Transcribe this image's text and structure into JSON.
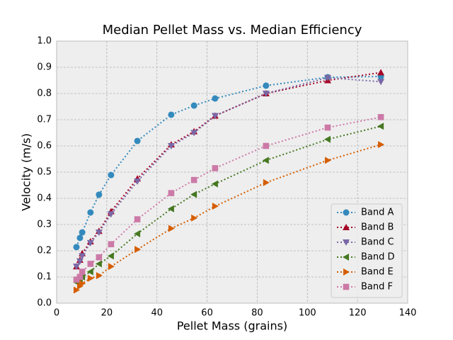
{
  "chart_data": {
    "type": "line",
    "title": "Median Pellet Mass vs. Median Efficiency",
    "x_label": "Pellet Mass (grains)",
    "y_label": "Velocity (m/s)",
    "x": [
      7.9,
      9.3,
      10.2,
      13.5,
      16.9,
      21.7,
      32.2,
      45.7,
      54.8,
      63.2,
      83.5,
      108.1,
      129.3
    ],
    "series": [
      {
        "name": "Band A",
        "color": "#348abd",
        "marker": "circle",
        "values": [
          0.214,
          0.249,
          0.27,
          0.346,
          0.414,
          0.489,
          0.619,
          0.719,
          0.754,
          0.781,
          0.83,
          0.862,
          0.865
        ]
      },
      {
        "name": "Band B",
        "color": "#a60628",
        "marker": "triangle-up",
        "values": [
          0.14,
          0.165,
          0.19,
          0.235,
          0.275,
          0.35,
          0.475,
          0.605,
          0.655,
          0.715,
          0.8,
          0.85,
          0.88
        ]
      },
      {
        "name": "Band C",
        "color": "#7a68a6",
        "marker": "triangle-down",
        "values": [
          0.14,
          0.16,
          0.18,
          0.23,
          0.27,
          0.34,
          0.465,
          0.6,
          0.65,
          0.715,
          0.8,
          0.86,
          0.845
        ]
      },
      {
        "name": "Band D",
        "color": "#467821",
        "marker": "triangle-left",
        "values": [
          0.08,
          0.09,
          0.1,
          0.12,
          0.15,
          0.18,
          0.265,
          0.36,
          0.415,
          0.455,
          0.545,
          0.625,
          0.675
        ]
      },
      {
        "name": "Band E",
        "color": "#d55e00",
        "marker": "triangle-right",
        "values": [
          0.05,
          0.065,
          0.075,
          0.095,
          0.105,
          0.14,
          0.205,
          0.285,
          0.325,
          0.37,
          0.46,
          0.545,
          0.605
        ]
      },
      {
        "name": "Band F",
        "color": "#cc79a7",
        "marker": "square",
        "values": [
          0.09,
          0.1,
          0.12,
          0.15,
          0.175,
          0.225,
          0.32,
          0.42,
          0.47,
          0.515,
          0.6,
          0.67,
          0.71
        ]
      }
    ],
    "xlim": [
      0,
      140
    ],
    "xticks": [
      0,
      20,
      40,
      60,
      80,
      100,
      120,
      140
    ],
    "ylim": [
      0,
      1
    ],
    "yticks": [
      {
        "value": 0,
        "label": "0.0"
      },
      0.1,
      0.2,
      0.3,
      0.4,
      0.5,
      0.6,
      0.7,
      0.8,
      0.9,
      {
        "value": 1,
        "label": "1.0"
      }
    ],
    "grid": true,
    "legend": "lower right"
  }
}
